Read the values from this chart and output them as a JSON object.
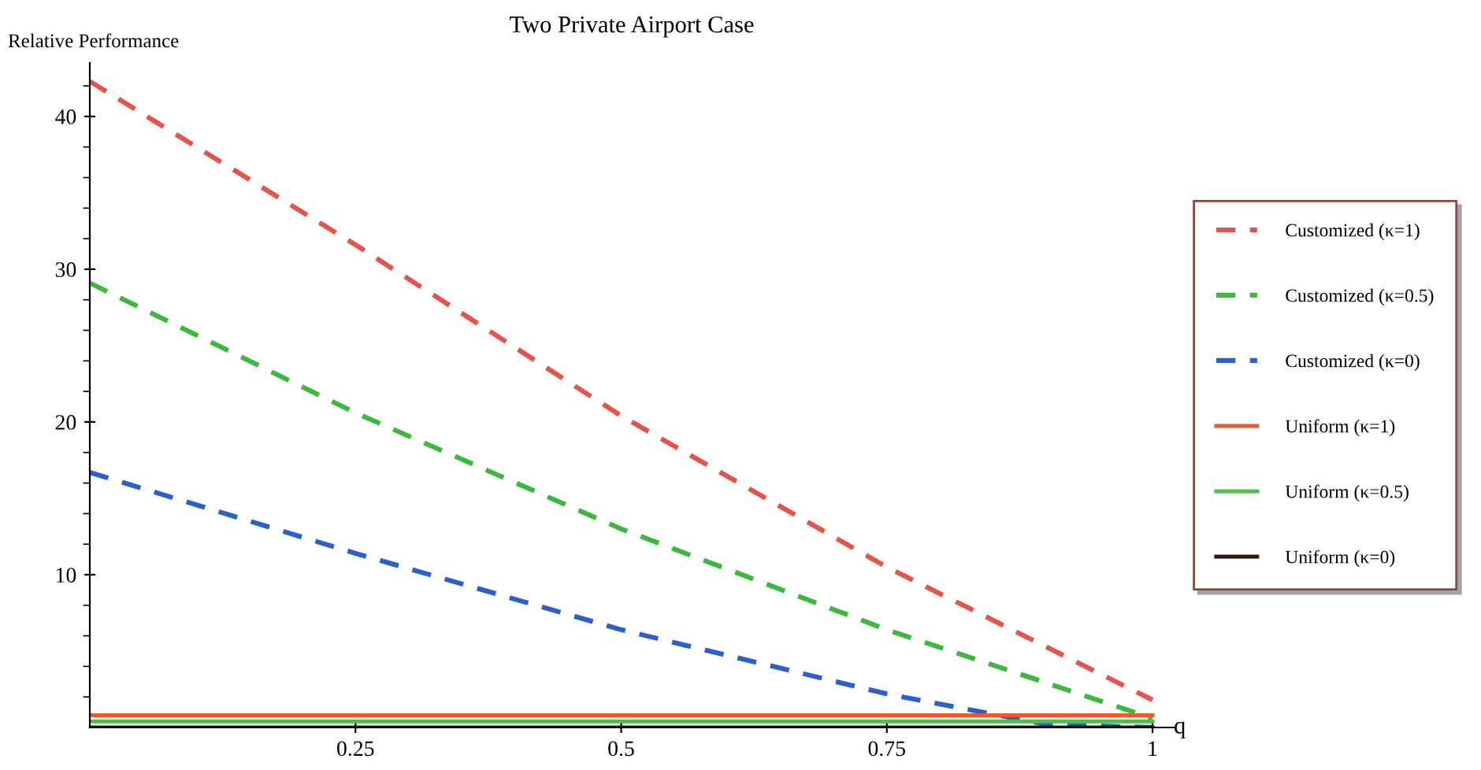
{
  "chart_data": {
    "type": "line",
    "title": "Two Private Airport Case",
    "ylabel": "Relative Performance",
    "xlabel": "q",
    "xlim": [
      0,
      1.02
    ],
    "ylim": [
      0,
      43.5
    ],
    "xticks": [
      {
        "value": 0.25,
        "label": "0.25"
      },
      {
        "value": 0.5,
        "label": "0.5"
      },
      {
        "value": 0.75,
        "label": "0.75"
      },
      1
    ],
    "yticks": [
      {
        "value": 2,
        "label": null
      },
      {
        "value": 4,
        "label": null
      },
      {
        "value": 6,
        "label": null
      },
      {
        "value": 8,
        "label": null
      },
      10,
      {
        "value": 12,
        "label": null
      },
      {
        "value": 14,
        "label": null
      },
      {
        "value": 16,
        "label": null
      },
      {
        "value": 18,
        "label": null
      },
      20,
      {
        "value": 22,
        "label": null
      },
      {
        "value": 24,
        "label": null
      },
      {
        "value": 26,
        "label": null
      },
      {
        "value": 28,
        "label": null
      },
      30,
      {
        "value": 32,
        "label": null
      },
      {
        "value": 34,
        "label": null
      },
      {
        "value": 36,
        "label": null
      },
      {
        "value": 38,
        "label": null
      },
      40,
      {
        "value": 42,
        "label": null
      }
    ],
    "grid": false,
    "legend": "right",
    "series": [
      {
        "name": "Customized (κ=1)",
        "color": "#e8524a",
        "line_style": "dashed",
        "x": [
          0,
          0.25,
          0.5,
          0.75,
          1
        ],
        "values": [
          42.3,
          31.6,
          20.4,
          10.5,
          1.8
        ]
      },
      {
        "name": "Customized (κ=0.5)",
        "color": "#3cb93c",
        "line_style": "dashed",
        "x": [
          0,
          0.25,
          0.5,
          0.75,
          1
        ],
        "values": [
          29.1,
          20.6,
          13.0,
          6.4,
          0.6
        ]
      },
      {
        "name": "Customized (κ=0)",
        "color": "#2a5fce",
        "line_style": "dashed",
        "x": [
          0,
          0.25,
          0.5,
          0.75,
          0.9,
          1
        ],
        "values": [
          16.7,
          11.4,
          6.4,
          2.2,
          0.2,
          0
        ]
      },
      {
        "name": "Uniform (κ=1)",
        "color": "#f05a28",
        "line_style": "solid",
        "x": [
          0,
          1
        ],
        "values": [
          0.8,
          0.8
        ]
      },
      {
        "name": "Uniform (κ=0.5)",
        "color": "#4cc04c",
        "line_style": "solid",
        "x": [
          0,
          1
        ],
        "values": [
          0.4,
          0.4
        ]
      },
      {
        "name": "Uniform (κ=0)",
        "color": "#2a1a14",
        "line_style": "solid",
        "x": [
          0,
          1
        ],
        "values": [
          0,
          0
        ]
      }
    ]
  }
}
